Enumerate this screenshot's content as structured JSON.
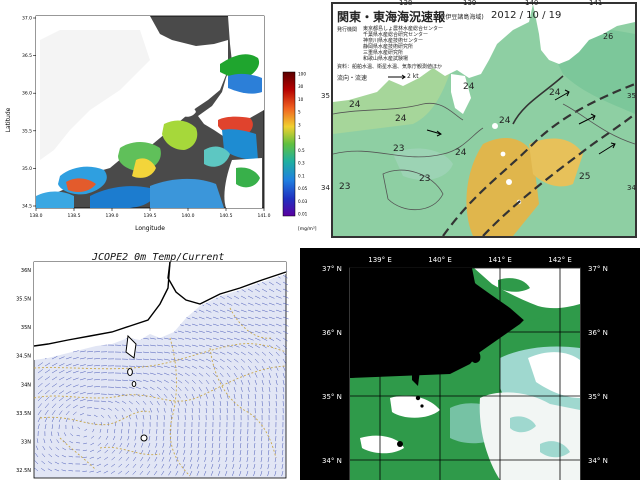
{
  "panel1": {
    "xlabel": "Longitude",
    "ylabel": "Latitude",
    "x_ticks": [
      "138.0",
      "138.5",
      "139.0",
      "139.5",
      "140.0",
      "140.5",
      "141.0"
    ],
    "y_ticks": [
      "37.0",
      "36.5",
      "36.0",
      "35.5",
      "35.0",
      "34.5"
    ],
    "colorbar_ticks": [
      "100",
      "30",
      "10",
      "5",
      "3",
      "1",
      "0.5",
      "0.3",
      "0.1",
      "0.05",
      "0.03",
      "0.01"
    ],
    "colorbar_unit": "[mg/m³]",
    "colors": {
      "ocean_cloud": "#4a4a4a",
      "land": "#ffffff"
    }
  },
  "panel2": {
    "title": "関東・東海海況速報",
    "subtitle": "(伊豆諸島海域)",
    "date": "2012 / 10 / 19",
    "issuers_heading": "発行機関",
    "issuers": [
      "東京都島しょ農林水産総合センター",
      "千葉県水産総合研究センター",
      "神奈川県水産技術センター",
      "静岡県水産技術研究所",
      "三重県水産研究所",
      "和歌山県水産試験場"
    ],
    "data_source": "資料：船舶水温、衛星水温、気象庁観測値ほか",
    "legend_label": "流向・流速",
    "legend_speed": "2 kt",
    "top_ticks": [
      "138",
      "139",
      "140",
      "141"
    ],
    "left_ticks": [
      "35",
      "34"
    ],
    "right_ticks": [
      "35",
      "34"
    ],
    "temps": [
      "24",
      "24",
      "24",
      "23",
      "24",
      "24",
      "23",
      "24",
      "23",
      "25",
      "26"
    ],
    "colors": {
      "sea_warm": "#e0b64c",
      "sea_mid": "#8ecfa3",
      "sea_cool": "#b7dca0",
      "land": "#ffffff"
    }
  },
  "panel3": {
    "title": "JCOPE2   0m Temp/Current",
    "y_ticks": [
      "36N",
      "35.5N",
      "35N",
      "34.5N",
      "34N",
      "33.5N",
      "33N",
      "32.5N"
    ],
    "colors": {
      "background": "#e2e6f5",
      "arrows": "#4a5ab8",
      "contours": "#c9a84c"
    }
  },
  "panel4": {
    "top_ticks": [
      "139° E",
      "140° E",
      "141° E",
      "142° E"
    ],
    "left_ticks": [
      "37° N",
      "36° N",
      "35° N",
      "34° N"
    ],
    "right_ticks": [
      "37° N",
      "36° N",
      "35° N",
      "34° N"
    ],
    "colors": {
      "cloud": "#ffffff",
      "sea_green": "#2f9a4a",
      "sea_cyan": "#9fd8cf",
      "land": "#000000"
    }
  }
}
